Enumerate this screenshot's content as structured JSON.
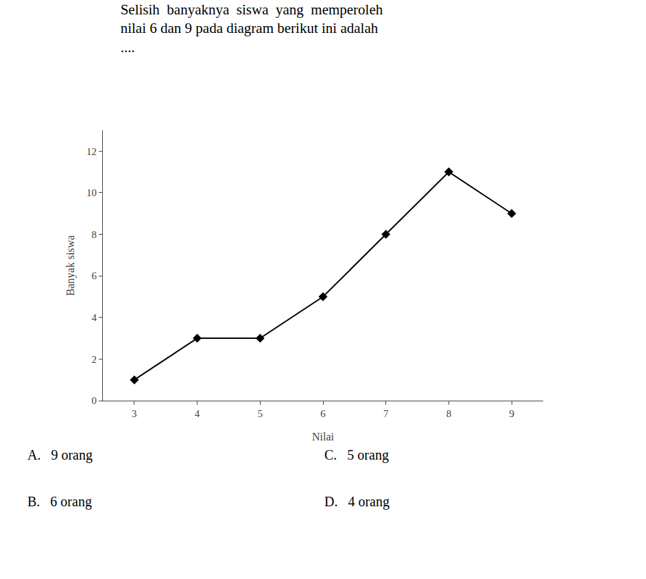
{
  "chart_data": {
    "type": "line",
    "title": "Selisih  banyaknya  siswa  yang  memperoleh\nnilai 6 dan 9 pada diagram berikut ini adalah\n....",
    "x": [
      3,
      4,
      5,
      6,
      7,
      8,
      9
    ],
    "values": [
      1,
      3,
      3,
      5,
      8,
      11,
      9
    ],
    "xlabel": "Nilai",
    "ylabel": "Banyak siswa",
    "xlim": [
      2.5,
      9.5
    ],
    "xticks": [
      3,
      4,
      5,
      6,
      7,
      8,
      9
    ],
    "ylim": [
      0,
      13
    ],
    "yticks": [
      0,
      2,
      4,
      6,
      8,
      10,
      12
    ],
    "color": "#000000",
    "marker": "diamond",
    "line_style": "solid",
    "grid": false,
    "annotations": [
      "A.   9 orang",
      "B.   6 orang",
      "C.   5 orang",
      "D.   4 orang"
    ]
  }
}
